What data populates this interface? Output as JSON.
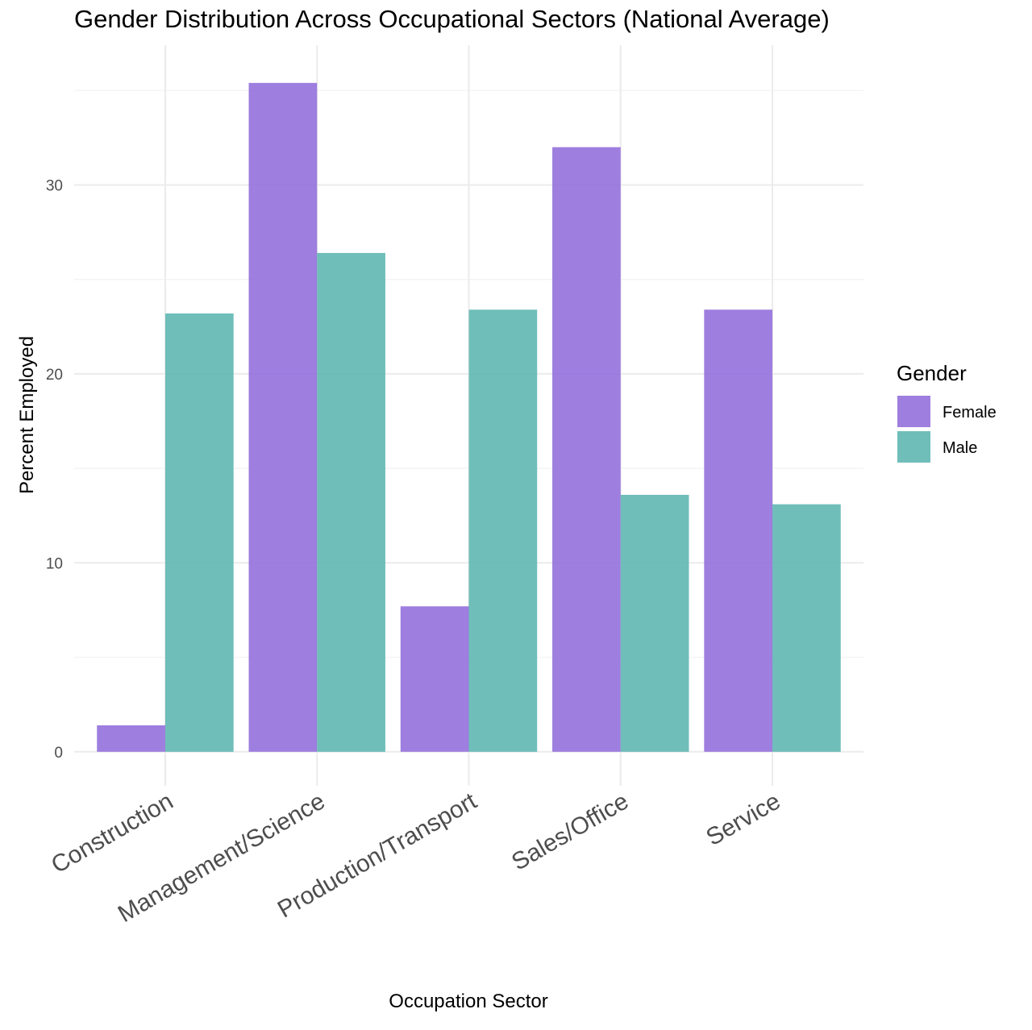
{
  "chart_data": {
    "type": "bar",
    "title": "Gender Distribution Across Occupational Sectors (National Average)",
    "xlabel": "Occupation Sector",
    "ylabel": "Percent Employed",
    "categories": [
      "Construction",
      "Management/Science",
      "Production/Transport",
      "Sales/Office",
      "Service"
    ],
    "series": [
      {
        "name": "Female",
        "color": "#9370db",
        "values": [
          1.4,
          35.4,
          7.7,
          32.0,
          23.4
        ]
      },
      {
        "name": "Male",
        "color": "#5fb7b2",
        "values": [
          23.2,
          26.4,
          23.4,
          13.6,
          13.1
        ]
      }
    ],
    "ylim": [
      -1.8,
      37.4
    ],
    "yticks": [
      0,
      10,
      20,
      30
    ],
    "grid": true,
    "legend": {
      "title": "Gender",
      "position": "right"
    }
  }
}
